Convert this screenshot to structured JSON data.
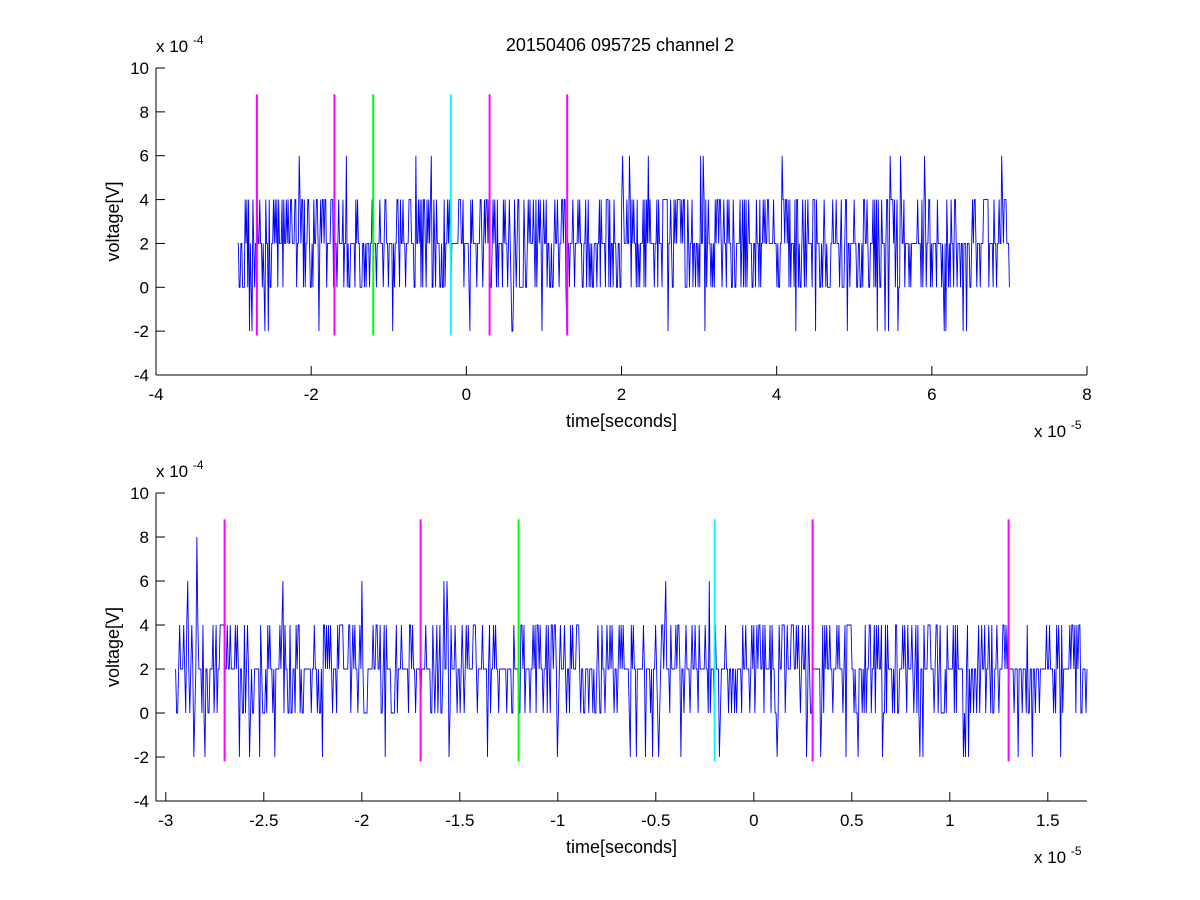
{
  "figure": {
    "title": "20150406 095725 channel 2"
  },
  "chart_data": [
    {
      "type": "line",
      "title": "20150406 095725 channel 2",
      "xlabel": "time[seconds]",
      "ylabel": "voltage[V]",
      "x_exponent_label": "x 10",
      "x_exponent": "-5",
      "y_exponent_label": "x 10",
      "y_exponent": "-4",
      "xlim": [
        -4,
        8
      ],
      "ylim": [
        -4,
        10
      ],
      "x_ticks": [
        -4,
        -2,
        0,
        2,
        4,
        6,
        8
      ],
      "x_tick_labels": [
        "-4",
        "-2",
        "0",
        "2",
        "4",
        "6",
        "8"
      ],
      "y_ticks": [
        -4,
        -2,
        0,
        2,
        4,
        6,
        8,
        10
      ],
      "y_tick_labels": [
        "-4",
        "-2",
        "0",
        "2",
        "4",
        "6",
        "8",
        "10"
      ],
      "grid": false,
      "signal": {
        "color": "#0000ff",
        "levels": [
          -2,
          0,
          2,
          4,
          6,
          8
        ],
        "x_range": [
          -2.95,
          7.0
        ],
        "baseline": 2,
        "notable_peaks": [
          {
            "x": -2.8,
            "y": 8
          },
          {
            "x": -2.15,
            "y": 6
          },
          {
            "x": -1.55,
            "y": 6
          },
          {
            "x": -0.45,
            "y": 6
          },
          {
            "x": 2.1,
            "y": 6
          },
          {
            "x": 2.35,
            "y": 6
          },
          {
            "x": 3.05,
            "y": 6
          },
          {
            "x": 5.6,
            "y": 6
          },
          {
            "x": 5.9,
            "y": 6
          },
          {
            "x": 6.9,
            "y": 6
          }
        ],
        "notable_troughs": [
          {
            "x": -2.8,
            "y": -2
          },
          {
            "x": -2.6,
            "y": -2
          },
          {
            "x": -1.9,
            "y": -2
          },
          {
            "x": -0.95,
            "y": -2
          },
          {
            "x": 0.05,
            "y": -2
          },
          {
            "x": 0.6,
            "y": -2
          },
          {
            "x": 1.3,
            "y": -2
          },
          {
            "x": 2.6,
            "y": -2
          },
          {
            "x": 4.25,
            "y": -2
          },
          {
            "x": 4.5,
            "y": -2
          },
          {
            "x": 5.3,
            "y": -2
          },
          {
            "x": 6.4,
            "y": -2
          }
        ]
      },
      "markers": [
        {
          "x": -2.7,
          "color": "#ff00ff",
          "y_range": [
            -2.2,
            8.8
          ]
        },
        {
          "x": -1.7,
          "color": "#ff00ff",
          "y_range": [
            -2.2,
            8.8
          ]
        },
        {
          "x": -1.2,
          "color": "#00ff00",
          "y_range": [
            -2.2,
            8.8
          ]
        },
        {
          "x": -0.2,
          "color": "#00ffff",
          "y_range": [
            -2.2,
            8.8
          ]
        },
        {
          "x": 0.3,
          "color": "#ff00ff",
          "y_range": [
            -2.2,
            8.8
          ]
        },
        {
          "x": 1.3,
          "color": "#ff00ff",
          "y_range": [
            -2.2,
            8.8
          ]
        }
      ]
    },
    {
      "type": "line",
      "title": "",
      "xlabel": "time[seconds]",
      "ylabel": "voltage[V]",
      "x_exponent_label": "x 10",
      "x_exponent": "-5",
      "y_exponent_label": "x 10",
      "y_exponent": "-4",
      "xlim": [
        -3.05,
        1.7
      ],
      "ylim": [
        -4,
        10
      ],
      "x_ticks": [
        -3,
        -2.5,
        -2,
        -1.5,
        -1,
        -0.5,
        0,
        0.5,
        1,
        1.5
      ],
      "x_tick_labels": [
        "-3",
        "-2.5",
        "-2",
        "-1.5",
        "-1",
        "-0.5",
        "0",
        "0.5",
        "1",
        "1.5"
      ],
      "y_ticks": [
        -4,
        -2,
        0,
        2,
        4,
        6,
        8,
        10
      ],
      "y_tick_labels": [
        "-4",
        "-2",
        "0",
        "2",
        "4",
        "6",
        "8",
        "10"
      ],
      "grid": false,
      "signal": {
        "color": "#0000ff",
        "levels": [
          -2,
          0,
          2,
          4,
          6,
          8
        ],
        "x_range": [
          -2.95,
          1.7
        ],
        "baseline": 2,
        "notable_peaks": [
          {
            "x": -2.84,
            "y": 8
          },
          {
            "x": -2.0,
            "y": 6
          },
          {
            "x": -1.58,
            "y": 6
          },
          {
            "x": -0.45,
            "y": 6
          }
        ],
        "notable_troughs": [
          {
            "x": -2.8,
            "y": -2
          },
          {
            "x": -2.52,
            "y": -2
          },
          {
            "x": -2.2,
            "y": -2
          },
          {
            "x": -1.88,
            "y": -2
          },
          {
            "x": -1.36,
            "y": -2
          },
          {
            "x": -1.0,
            "y": -2
          },
          {
            "x": -0.6,
            "y": -2
          },
          {
            "x": 0.53,
            "y": -2
          },
          {
            "x": 1.08,
            "y": -2
          },
          {
            "x": 1.35,
            "y": -2
          }
        ]
      },
      "markers": [
        {
          "x": -2.7,
          "color": "#ff00ff",
          "y_range": [
            -2.2,
            8.8
          ]
        },
        {
          "x": -1.7,
          "color": "#ff00ff",
          "y_range": [
            -2.2,
            8.8
          ]
        },
        {
          "x": -1.2,
          "color": "#00ff00",
          "y_range": [
            -2.2,
            8.8
          ]
        },
        {
          "x": -0.2,
          "color": "#00ffff",
          "y_range": [
            -2.2,
            8.8
          ]
        },
        {
          "x": 0.3,
          "color": "#ff00ff",
          "y_range": [
            -2.2,
            8.8
          ]
        },
        {
          "x": 1.3,
          "color": "#ff00ff",
          "y_range": [
            -2.2,
            8.8
          ]
        }
      ]
    }
  ]
}
